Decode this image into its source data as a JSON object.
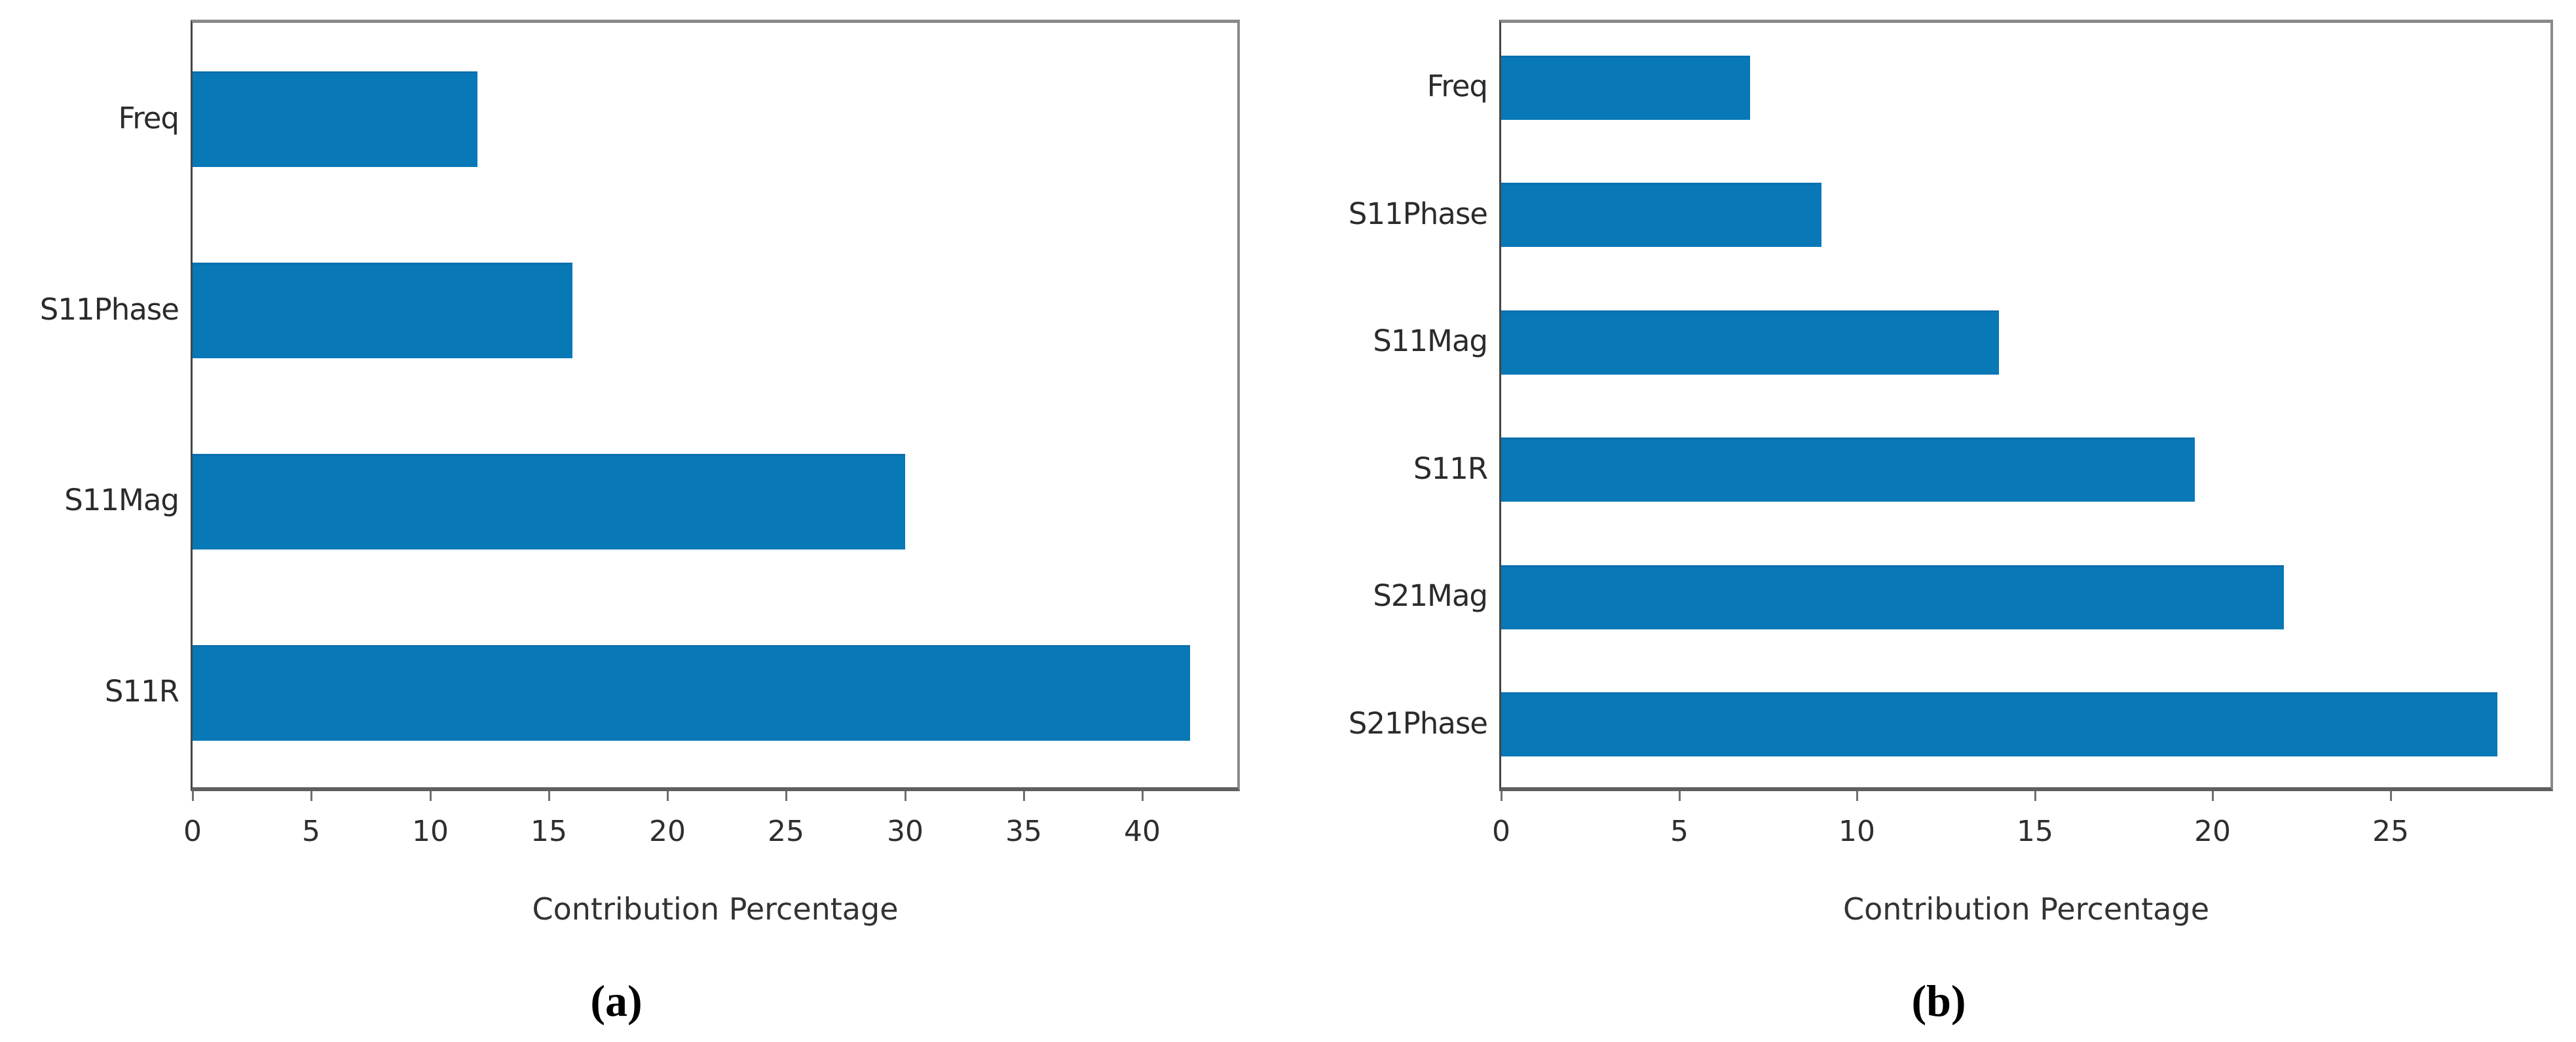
{
  "figure": {
    "xlabel": "Contribution Percentage",
    "caption_a": "(a)",
    "caption_b": "(b)"
  },
  "colors": {
    "bar": "#0878b7",
    "bar_edge": "#0a6fae",
    "spine": "#6e6e6e",
    "text": "#2b2b2b"
  },
  "chart_data": [
    {
      "type": "bar",
      "orientation": "horizontal",
      "title": "",
      "xlabel": "Contribution Percentage",
      "ylabel": "",
      "caption": "(a)",
      "categories": [
        "Freq",
        "S11Phase",
        "S11Mag",
        "S11R"
      ],
      "values": [
        12,
        16,
        30,
        42
      ],
      "xlim": [
        0,
        44
      ],
      "xticks": [
        0,
        5,
        10,
        15,
        20,
        25,
        30,
        35,
        40
      ],
      "grid": false,
      "legend": null
    },
    {
      "type": "bar",
      "orientation": "horizontal",
      "title": "",
      "xlabel": "Contribution Percentage",
      "ylabel": "",
      "caption": "(b)",
      "categories": [
        "Freq",
        "S11Phase",
        "S11Mag",
        "S11R",
        "S21Mag",
        "S21Phase"
      ],
      "values": [
        7,
        9,
        14,
        19.5,
        22,
        28
      ],
      "xlim": [
        0,
        29.5
      ],
      "xticks": [
        0,
        5,
        10,
        15,
        20,
        25
      ],
      "grid": false,
      "legend": null
    }
  ]
}
